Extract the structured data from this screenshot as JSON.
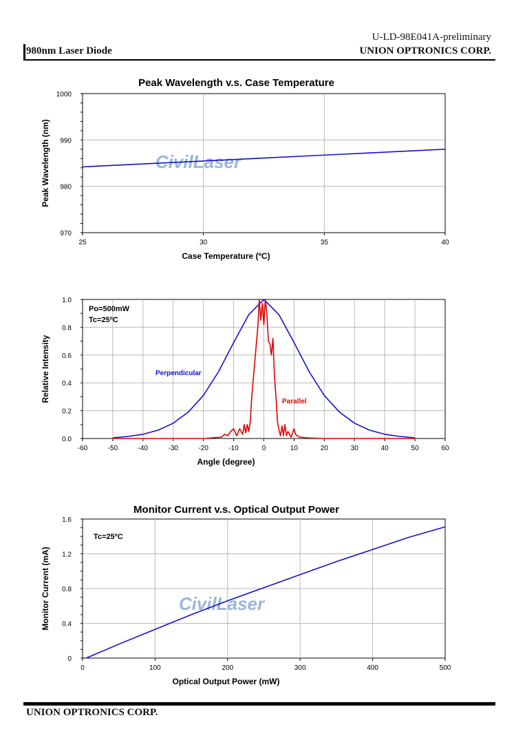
{
  "header": {
    "doc_id": "U-LD-98E041A-preliminary",
    "product": "980nm Laser Diode",
    "company": "UNION OPTRONICS CORP."
  },
  "footer": {
    "company": "UNION OPTRONICS CORP."
  },
  "watermark": "CivilLaser",
  "colors": {
    "blue": "#1010d0",
    "red": "#e00000",
    "grid": "#b8b8b8"
  },
  "chart_data": [
    {
      "type": "line",
      "title": "Peak Wavelength v.s. Case Temperature",
      "xlabel": "Case Temperature (ºC)",
      "ylabel": "Peak Wavelength (nm)",
      "xlim": [
        25,
        40
      ],
      "ylim": [
        970,
        1000
      ],
      "xticks": [
        25,
        30,
        35,
        40
      ],
      "yticks": [
        970,
        980,
        990,
        1000
      ],
      "grid": true,
      "series": [
        {
          "color": "#1010d0",
          "x": [
            25,
            40
          ],
          "y": [
            984.2,
            988.0
          ]
        }
      ]
    },
    {
      "type": "line",
      "title": "",
      "xlabel": "Angle (degree)",
      "ylabel": "Relative Intensity",
      "xlim": [
        -60,
        60
      ],
      "ylim": [
        0,
        1.0
      ],
      "xticks": [
        -60,
        -50,
        -40,
        -30,
        -20,
        -10,
        0,
        10,
        20,
        30,
        40,
        50,
        60
      ],
      "yticks": [
        "0.0",
        "0.2",
        "0.4",
        "0.6",
        "0.8",
        "1.0"
      ],
      "grid": true,
      "annotations": [
        "Po=500mW",
        "Tc=25ºC"
      ],
      "series": [
        {
          "name": "Perpendicular",
          "color": "#1010d0",
          "x": [
            -50,
            -45,
            -40,
            -35,
            -30,
            -25,
            -20,
            -15,
            -10,
            -5,
            0,
            5,
            10,
            15,
            20,
            25,
            30,
            35,
            40,
            45,
            50
          ],
          "y": [
            0.005,
            0.015,
            0.03,
            0.06,
            0.11,
            0.19,
            0.31,
            0.48,
            0.69,
            0.89,
            1.0,
            0.89,
            0.69,
            0.48,
            0.31,
            0.19,
            0.11,
            0.06,
            0.03,
            0.015,
            0.005
          ]
        },
        {
          "name": "Parallel",
          "color": "#e00000",
          "x": [
            -50,
            -20,
            -14,
            -13,
            -12,
            -11,
            -10,
            -9,
            -8,
            -7,
            -6.5,
            -6,
            -5.5,
            -5,
            -4.5,
            -4,
            -3,
            -2,
            -1.5,
            -1,
            -0.5,
            0,
            0.5,
            1,
            1.5,
            2,
            2.5,
            3,
            3.5,
            4,
            4.5,
            5,
            5.5,
            6,
            6.5,
            7,
            7.5,
            8,
            9,
            10,
            10.5,
            11,
            12,
            14,
            20,
            50
          ],
          "y": [
            0.0,
            0.0,
            0.01,
            0.03,
            0.02,
            0.05,
            0.07,
            0.02,
            0.07,
            0.03,
            0.1,
            0.04,
            0.1,
            0.05,
            0.12,
            0.3,
            0.55,
            0.8,
            1.0,
            0.85,
            0.97,
            0.82,
            1.0,
            0.9,
            0.7,
            0.68,
            0.6,
            0.72,
            0.45,
            0.3,
            0.12,
            0.06,
            0.02,
            0.09,
            0.02,
            0.1,
            0.02,
            0.05,
            0.01,
            0.07,
            0.03,
            0.02,
            0.01,
            0.005,
            0.0,
            0.0
          ]
        }
      ]
    },
    {
      "type": "line",
      "title": "Monitor Current v.s. Optical Output Power",
      "xlabel": "Optical Output Power (mW)",
      "ylabel": "Monitor Current (mA)",
      "xlim": [
        0,
        500
      ],
      "ylim": [
        0,
        1.6
      ],
      "xticks": [
        0,
        100,
        200,
        300,
        400,
        500
      ],
      "yticks": [
        0,
        0.4,
        0.8,
        1.2,
        1.6
      ],
      "grid": true,
      "annotations": [
        "Tc=25ºC"
      ],
      "series": [
        {
          "color": "#1010d0",
          "x": [
            5,
            50,
            100,
            150,
            200,
            250,
            300,
            350,
            400,
            450,
            500
          ],
          "y": [
            0.0,
            0.16,
            0.33,
            0.5,
            0.66,
            0.81,
            0.96,
            1.11,
            1.25,
            1.39,
            1.51
          ]
        }
      ]
    }
  ]
}
